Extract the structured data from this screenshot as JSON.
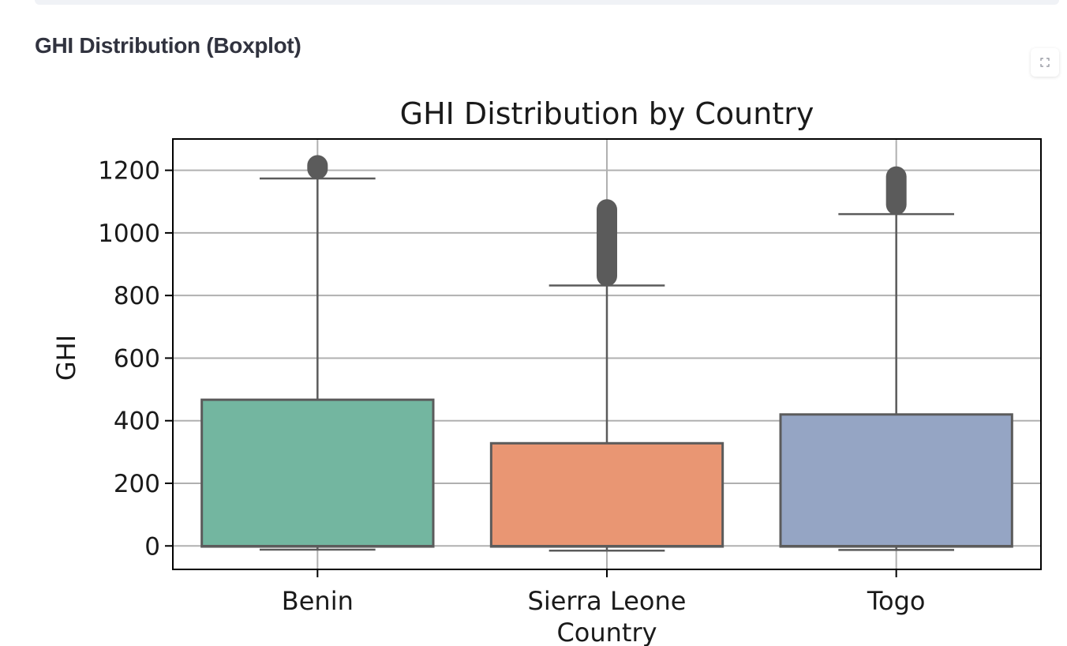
{
  "section": {
    "title": "GHI Distribution (Boxplot)"
  },
  "toolbar": {
    "fullscreen_icon": "expand-icon"
  },
  "chart_data": {
    "type": "boxplot",
    "title": "GHI Distribution by Country",
    "xlabel": "Country",
    "ylabel": "GHI",
    "ylim": [
      -75,
      1300
    ],
    "yticks": [
      0,
      200,
      400,
      600,
      800,
      1000,
      1200
    ],
    "grid": true,
    "categories": [
      "Benin",
      "Sierra Leone",
      "Togo"
    ],
    "colors": [
      "#73b6a0",
      "#e99673",
      "#95a5c4"
    ],
    "edge_color": "#5b5b5b",
    "boxes": [
      {
        "name": "Benin",
        "whisker_low": -12,
        "q1": -2,
        "median": 0,
        "q3": 467,
        "whisker_high": 1174,
        "outliers_range": [
          1174,
          1246
        ]
      },
      {
        "name": "Sierra Leone",
        "whisker_low": -15,
        "q1": -2,
        "median": 0,
        "q3": 328,
        "whisker_high": 832,
        "outliers_range": [
          832,
          1105
        ]
      },
      {
        "name": "Togo",
        "whisker_low": -13,
        "q1": -2,
        "median": 0,
        "q3": 420,
        "whisker_high": 1060,
        "outliers_range": [
          1060,
          1210
        ]
      }
    ]
  }
}
